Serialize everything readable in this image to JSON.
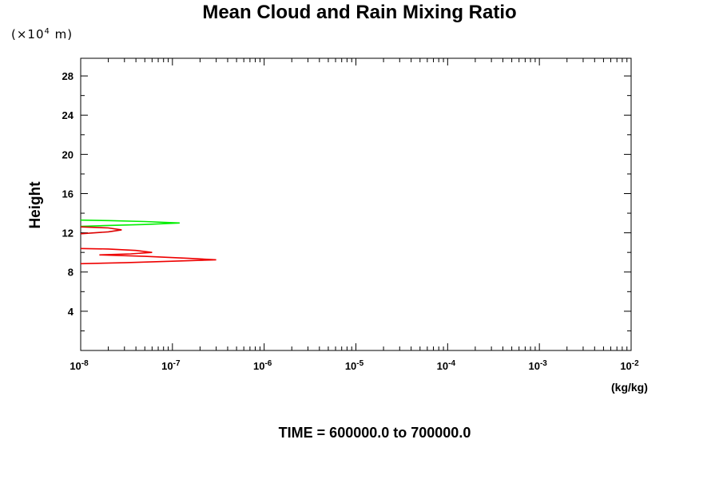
{
  "chart_data": {
    "type": "line",
    "title": "Mean Cloud and Rain Mixing Ratio",
    "ylabel": "Height",
    "y_unit_prefix": "(×10",
    "y_unit_exp": "4",
    "y_unit_suffix": " m)",
    "x_unit": "(kg/kg)",
    "footer": "TIME = 600000.0 to 700000.0",
    "x_scale": "log",
    "xlim": [
      1e-08,
      0.01
    ],
    "ylim": [
      0,
      29.8
    ],
    "x_ticks": [
      {
        "base": "10",
        "exp": "-8",
        "value": 1e-08
      },
      {
        "base": "10",
        "exp": "-7",
        "value": 1e-07
      },
      {
        "base": "10",
        "exp": "-6",
        "value": 1e-06
      },
      {
        "base": "10",
        "exp": "-5",
        "value": 1e-05
      },
      {
        "base": "10",
        "exp": "-4",
        "value": 0.0001
      },
      {
        "base": "10",
        "exp": "-3",
        "value": 0.001
      },
      {
        "base": "10",
        "exp": "-2",
        "value": 0.01
      }
    ],
    "y_ticks": [
      4,
      8,
      12,
      16,
      20,
      24,
      28
    ],
    "grid": false,
    "series": [
      {
        "color": "#00ee00",
        "points": [
          [
            1e-08,
            13.3
          ],
          [
            2e-08,
            13.25
          ],
          [
            5e-08,
            13.15
          ],
          [
            1.2e-07,
            13.0
          ],
          [
            5e-08,
            12.85
          ],
          [
            2e-08,
            12.75
          ],
          [
            1e-08,
            12.65
          ]
        ]
      },
      {
        "color": "#dd0000",
        "points": [
          [
            1e-08,
            12.6
          ],
          [
            2e-08,
            12.5
          ],
          [
            2.8e-08,
            12.3
          ],
          [
            2e-08,
            12.1
          ],
          [
            1e-08,
            11.9
          ]
        ]
      },
      {
        "color": "#ee0000",
        "points": [
          [
            1e-08,
            10.4
          ],
          [
            2e-08,
            10.35
          ],
          [
            4e-08,
            10.2
          ],
          [
            6e-08,
            10.0
          ],
          [
            3.5e-08,
            9.85
          ],
          [
            1.6e-08,
            9.75
          ],
          [
            5e-08,
            9.6
          ],
          [
            1.5e-07,
            9.4
          ],
          [
            3e-07,
            9.25
          ],
          [
            1e-07,
            9.1
          ],
          [
            3e-08,
            8.95
          ],
          [
            1e-08,
            8.85
          ]
        ]
      }
    ]
  }
}
